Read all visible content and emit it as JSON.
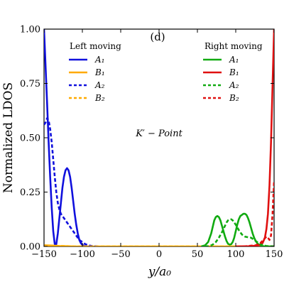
{
  "chart_data": {
    "type": "line",
    "panel_label": "(d)",
    "annotation": "K′ − Point",
    "xlabel": "y/a₀",
    "ylabel": "Normalized LDOS",
    "xlim": [
      -150,
      150
    ],
    "ylim": [
      0,
      1
    ],
    "x_ticks": [
      -150,
      -100,
      -50,
      0,
      50,
      100,
      150
    ],
    "x_tick_labels": [
      "−150",
      "−100",
      "−50",
      "0",
      "50",
      "100",
      "150"
    ],
    "y_ticks": [
      0,
      0.25,
      0.5,
      0.75,
      1.0
    ],
    "y_tick_labels": [
      "0.00",
      "0.25",
      "0.50",
      "0.75",
      "1.00"
    ],
    "grid": false,
    "legends": [
      {
        "title": "Left moving",
        "placement": "top-left",
        "entries": [
          "A₁",
          "B₁",
          "A₂",
          "B₂"
        ]
      },
      {
        "title": "Right moving",
        "placement": "top-right",
        "entries": [
          "A₁",
          "B₁",
          "A₂",
          "B₂"
        ]
      }
    ],
    "colors": {
      "left_A": "#1010dd",
      "left_B": "#ffaa00",
      "right_A": "#11aa11",
      "right_B": "#e01010"
    },
    "series": [
      {
        "name": "A₁",
        "group": "Left moving",
        "style": "solid",
        "color": "#1010dd",
        "x": [
          -150,
          -148,
          -146,
          -144,
          -142,
          -140,
          -138,
          -136,
          -134,
          -132,
          -130,
          -128,
          -126,
          -124,
          -122,
          -120,
          -118,
          -116,
          -114,
          -112,
          -110,
          -108,
          -106,
          -104,
          -102,
          -100,
          -98,
          -96,
          -94,
          -92,
          -90
        ],
        "y": [
          1.0,
          0.83,
          0.66,
          0.48,
          0.32,
          0.18,
          0.07,
          0.01,
          0.01,
          0.06,
          0.13,
          0.2,
          0.27,
          0.32,
          0.35,
          0.36,
          0.35,
          0.32,
          0.27,
          0.21,
          0.15,
          0.1,
          0.06,
          0.03,
          0.015,
          0.007,
          0.003,
          0.001,
          0,
          0,
          0
        ]
      },
      {
        "name": "B₁",
        "group": "Left moving",
        "style": "solid",
        "color": "#ffaa00",
        "x": [
          -150,
          -140,
          -130,
          -120,
          -110,
          -100,
          150
        ],
        "y": [
          0.005,
          0.004,
          0.002,
          0.001,
          0,
          0,
          0
        ]
      },
      {
        "name": "A₂",
        "group": "Left moving",
        "style": "dashed",
        "color": "#1010dd",
        "x": [
          -150,
          -148,
          -146,
          -144,
          -142,
          -140,
          -138,
          -136,
          -134,
          -132,
          -130,
          -128,
          -126,
          -124,
          -122,
          -120,
          -118,
          -116,
          -114,
          -112,
          -110,
          -108,
          -106,
          -104,
          -102,
          -100,
          -96,
          -92,
          -88,
          -84,
          -80
        ],
        "y": [
          0.56,
          0.57,
          0.59,
          0.58,
          0.54,
          0.48,
          0.4,
          0.32,
          0.25,
          0.2,
          0.17,
          0.15,
          0.14,
          0.13,
          0.12,
          0.11,
          0.1,
          0.09,
          0.08,
          0.07,
          0.06,
          0.05,
          0.04,
          0.03,
          0.025,
          0.02,
          0.01,
          0.005,
          0.002,
          0.001,
          0
        ]
      },
      {
        "name": "B₂",
        "group": "Left moving",
        "style": "dashed",
        "color": "#ffaa00",
        "x": [
          -150,
          -140,
          -130,
          -120,
          -110,
          150
        ],
        "y": [
          0.004,
          0.003,
          0.002,
          0.001,
          0,
          0
        ]
      },
      {
        "name": "A₁",
        "group": "Right moving",
        "style": "solid",
        "color": "#11aa11",
        "x": [
          55,
          60,
          64,
          68,
          70,
          72,
          74,
          76,
          78,
          80,
          82,
          84,
          86,
          88,
          90,
          92,
          94,
          96,
          98,
          100,
          102,
          104,
          106,
          108,
          110,
          112,
          114,
          116,
          118,
          120,
          122,
          124,
          126,
          128,
          130,
          132,
          134,
          136,
          138,
          140,
          144,
          150
        ],
        "y": [
          0,
          0.005,
          0.02,
          0.06,
          0.09,
          0.12,
          0.135,
          0.14,
          0.135,
          0.12,
          0.095,
          0.07,
          0.045,
          0.025,
          0.012,
          0.008,
          0.01,
          0.02,
          0.04,
          0.07,
          0.1,
          0.125,
          0.14,
          0.145,
          0.15,
          0.15,
          0.145,
          0.13,
          0.11,
          0.085,
          0.06,
          0.04,
          0.025,
          0.015,
          0.008,
          0.004,
          0.002,
          0.001,
          0,
          0,
          0,
          0
        ]
      },
      {
        "name": "B₁",
        "group": "Right moving",
        "style": "solid",
        "color": "#e01010",
        "x": [
          100,
          120,
          130,
          135,
          138,
          140,
          142,
          144,
          146,
          148,
          150
        ],
        "y": [
          0,
          0.001,
          0.005,
          0.015,
          0.04,
          0.08,
          0.15,
          0.28,
          0.48,
          0.74,
          1.0
        ]
      },
      {
        "name": "A₂",
        "group": "Right moving",
        "style": "dashed",
        "color": "#11aa11",
        "x": [
          60,
          66,
          70,
          74,
          78,
          82,
          86,
          88,
          90,
          92,
          94,
          96,
          98,
          100,
          104,
          108,
          112,
          116,
          120,
          124,
          128,
          132,
          136,
          140,
          144,
          150
        ],
        "y": [
          0,
          0.002,
          0.008,
          0.02,
          0.04,
          0.065,
          0.095,
          0.11,
          0.12,
          0.125,
          0.125,
          0.12,
          0.11,
          0.1,
          0.075,
          0.055,
          0.045,
          0.042,
          0.04,
          0.03,
          0.02,
          0.01,
          0.005,
          0.002,
          0.001,
          0
        ]
      },
      {
        "name": "B₂",
        "group": "Right moving",
        "style": "dashed",
        "color": "#e01010",
        "x": [
          110,
          126,
          132,
          136,
          140,
          142,
          144,
          146,
          148,
          150
        ],
        "y": [
          0,
          0.005,
          0.015,
          0.03,
          0.045,
          0.04,
          0.03,
          0.05,
          0.15,
          0.3
        ]
      }
    ]
  }
}
